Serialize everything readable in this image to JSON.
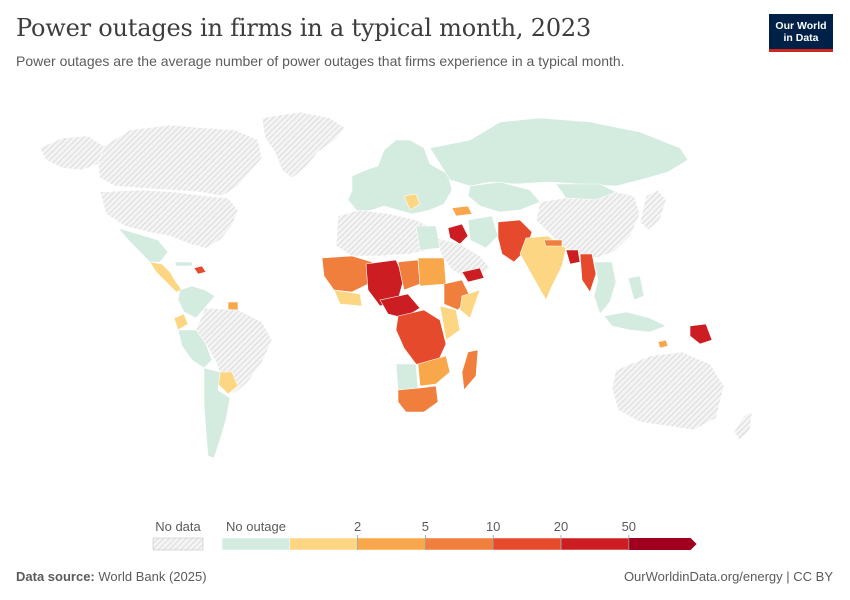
{
  "title": "Power outages in firms in a typical month, 2023",
  "subtitle": "Power outages are the average number of power outages that firms experience in a typical month.",
  "logo": {
    "line1": "Our World",
    "line2": "in Data"
  },
  "legend": {
    "no_data_label": "No data",
    "no_outage_label": "No outage",
    "tick_labels": [
      "2",
      "5",
      "10",
      "20",
      "50"
    ],
    "bins": [
      {
        "label": "No outage",
        "color": "#d4ebe0"
      },
      {
        "label": "0–2",
        "color": "#fdd683"
      },
      {
        "label": "2–5",
        "color": "#f8a84b"
      },
      {
        "label": "5–10",
        "color": "#f07e3c"
      },
      {
        "label": "10–20",
        "color": "#e64a2c"
      },
      {
        "label": "20–50",
        "color": "#cc1e22"
      },
      {
        "label": "50+",
        "color": "#a0001e"
      }
    ]
  },
  "footer": {
    "source_label": "Data source:",
    "source_value": "World Bank (2025)",
    "credit": "OurWorldinData.org/energy | CC BY"
  }
}
